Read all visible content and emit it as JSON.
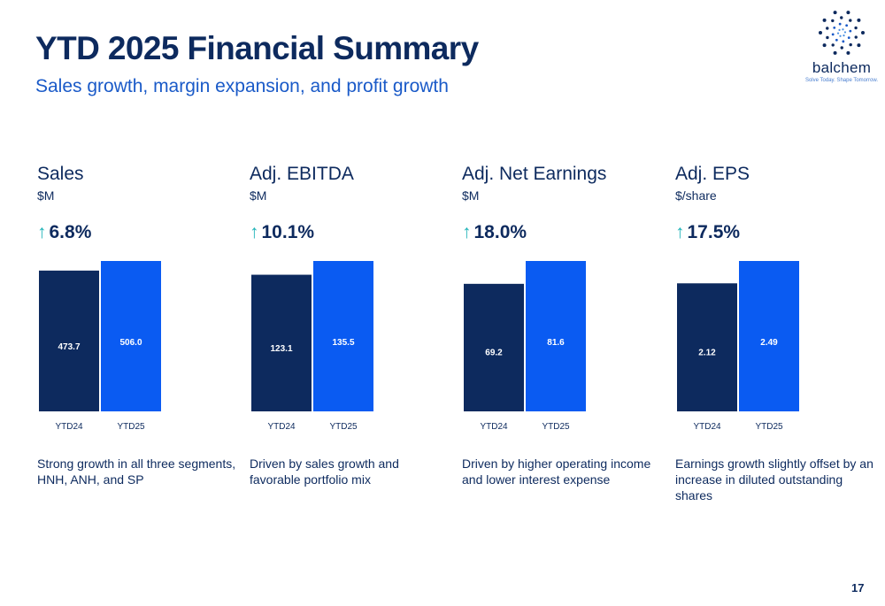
{
  "header": {
    "title": "YTD 2025 Financial Summary",
    "subtitle": "Sales growth, margin expansion, and profit growth"
  },
  "logo": {
    "word": "balchem",
    "tagline": "Solve Today. Shape Tomorrow."
  },
  "colors": {
    "prior_year": "#0d2a5e",
    "current_year": "#0a5bf2",
    "growth_arrow": "#1fb3b8",
    "text": "#0d2a5e",
    "subtitle": "#1a5ac8"
  },
  "icons": {
    "growth": "up-arrow-icon"
  },
  "panels": [
    {
      "name": "Sales",
      "unit": "$M",
      "growth": "6.8%",
      "commentary": "Strong growth in all three segments, HNH, ANH, and SP"
    },
    {
      "name": "Adj. EBITDA",
      "unit": "$M",
      "growth": "10.1%",
      "commentary": "Driven by sales growth and favorable portfolio mix"
    },
    {
      "name": "Adj. Net Earnings",
      "unit": "$M",
      "growth": "18.0%",
      "commentary": "Driven by higher operating income and lower interest expense"
    },
    {
      "name": "Adj. EPS",
      "unit": "$/share",
      "growth": "17.5%",
      "commentary": "Earnings growth slightly offset by an increase in diluted outstanding shares"
    }
  ],
  "chart_data": [
    {
      "type": "bar",
      "categories": [
        "YTD24",
        "YTD25"
      ],
      "values": [
        473.7,
        506.0
      ],
      "value_labels": [
        "473.7",
        "506.0"
      ],
      "title": "Sales",
      "ylabel": "$M"
    },
    {
      "type": "bar",
      "categories": [
        "YTD24",
        "YTD25"
      ],
      "values": [
        123.1,
        135.5
      ],
      "value_labels": [
        "123.1",
        "135.5"
      ],
      "title": "Adj. EBITDA",
      "ylabel": "$M"
    },
    {
      "type": "bar",
      "categories": [
        "YTD24",
        "YTD25"
      ],
      "values": [
        69.2,
        81.6
      ],
      "value_labels": [
        "69.2",
        "81.6"
      ],
      "title": "Adj. Net Earnings",
      "ylabel": "$M"
    },
    {
      "type": "bar",
      "categories": [
        "YTD24",
        "YTD25"
      ],
      "values": [
        2.12,
        2.49
      ],
      "value_labels": [
        "2.12",
        "2.49"
      ],
      "title": "Adj. EPS",
      "ylabel": "$/share"
    }
  ],
  "page_number": "17"
}
